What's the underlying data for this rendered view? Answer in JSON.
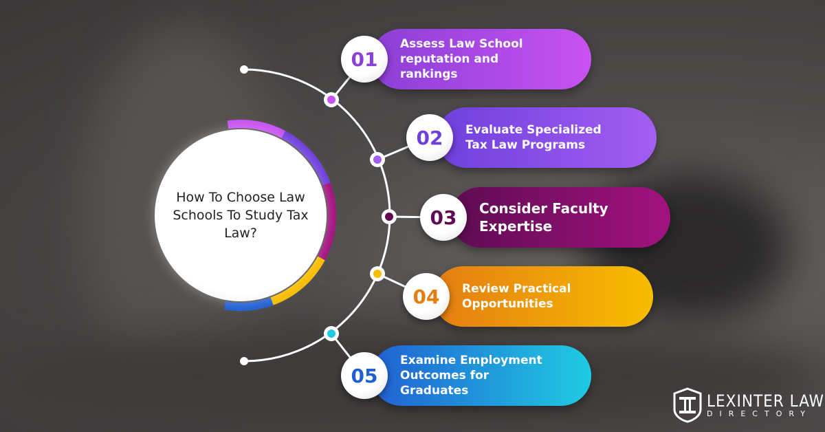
{
  "title": "How To Choose Law Schools To Study Tax Law?",
  "steps": [
    {
      "number": "01",
      "text": "Assess Law School reputation and rankings",
      "color_from": "#8b3fd6",
      "color_to": "#c852f2"
    },
    {
      "number": "02",
      "text": "Evaluate Specialized Tax Law Programs",
      "color_from": "#6f3fdc",
      "color_to": "#a35ef2"
    },
    {
      "number": "03",
      "text": "Consider Faculty Expertise",
      "color_from": "#5e0b52",
      "color_to": "#a3127f"
    },
    {
      "number": "04",
      "text": "Review Practical Opportunities",
      "color_from": "#e47d12",
      "color_to": "#f7bd00"
    },
    {
      "number": "05",
      "text": "Examine Employment Outcomes for Graduates",
      "color_from": "#2160d2",
      "color_to": "#1fcbe2"
    }
  ],
  "logo": {
    "name": "LEXINTER LAW",
    "sub": "DIRECTORY"
  }
}
